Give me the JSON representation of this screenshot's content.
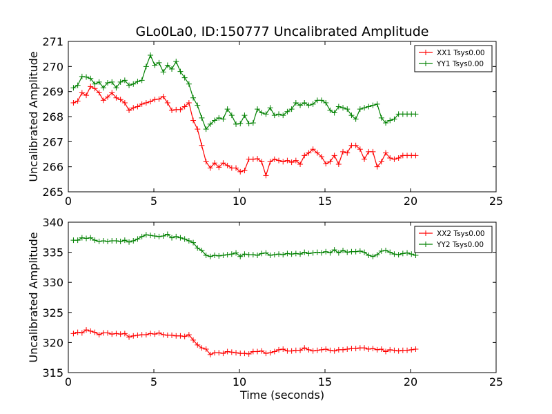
{
  "chart_data": [
    {
      "type": "line",
      "title": "GLo0La0, ID:150777 Uncalibrated Amplitude",
      "xlabel": "",
      "ylabel": "Uncalibrated Amplitude",
      "xlim": [
        0,
        25
      ],
      "ylim": [
        265,
        271
      ],
      "xticks": [
        "0",
        "5",
        "10",
        "15",
        "20",
        "25"
      ],
      "yticks": [
        "265",
        "266",
        "267",
        "268",
        "269",
        "270",
        "271"
      ],
      "legend": "top-right",
      "grid": false,
      "x": [
        0.3,
        0.55,
        0.8,
        1.05,
        1.3,
        1.55,
        1.8,
        2.05,
        2.3,
        2.55,
        2.8,
        3.05,
        3.3,
        3.55,
        3.8,
        4.05,
        4.3,
        4.55,
        4.8,
        5.05,
        5.3,
        5.55,
        5.8,
        6.05,
        6.3,
        6.55,
        6.8,
        7.05,
        7.3,
        7.55,
        7.8,
        8.05,
        8.3,
        8.55,
        8.8,
        9.05,
        9.3,
        9.55,
        9.8,
        10.05,
        10.3,
        10.55,
        10.8,
        11.05,
        11.3,
        11.55,
        11.8,
        12.05,
        12.3,
        12.55,
        12.8,
        13.05,
        13.3,
        13.55,
        13.8,
        14.05,
        14.3,
        14.55,
        14.8,
        15.05,
        15.3,
        15.55,
        15.8,
        16.05,
        16.3,
        16.55,
        16.8,
        17.05,
        17.3,
        17.55,
        17.8,
        18.05,
        18.3,
        18.55,
        18.8,
        19.05,
        19.3,
        19.55,
        19.8,
        20.05,
        20.3
      ],
      "series": [
        {
          "name": "XX1 Tsys0.00",
          "color": "#ff0000",
          "values": [
            268.55,
            268.62,
            268.95,
            268.85,
            269.2,
            269.12,
            268.95,
            268.65,
            268.78,
            268.95,
            268.75,
            268.68,
            268.55,
            268.25,
            268.35,
            268.4,
            268.5,
            268.55,
            268.6,
            268.68,
            268.7,
            268.8,
            268.55,
            268.25,
            268.28,
            268.28,
            268.4,
            268.55,
            267.85,
            267.5,
            266.85,
            266.2,
            265.95,
            266.15,
            265.98,
            266.15,
            266.05,
            265.95,
            265.95,
            265.8,
            265.85,
            266.3,
            266.3,
            266.32,
            266.2,
            265.65,
            266.2,
            266.3,
            266.25,
            266.2,
            266.25,
            266.18,
            266.25,
            266.1,
            266.45,
            266.55,
            266.7,
            266.55,
            266.4,
            266.12,
            266.2,
            266.45,
            266.1,
            266.6,
            266.55,
            266.85,
            266.85,
            266.7,
            266.3,
            266.6,
            266.6,
            266.0,
            266.2,
            266.55,
            266.35,
            266.3,
            266.35,
            266.45,
            266.45,
            266.45,
            266.45
          ]
        },
        {
          "name": "YY1 Tsys0.00",
          "color": "#008000",
          "values": [
            269.15,
            269.25,
            269.6,
            269.58,
            269.52,
            269.3,
            269.38,
            269.15,
            269.35,
            269.38,
            269.15,
            269.38,
            269.45,
            269.25,
            269.3,
            269.4,
            269.45,
            270.0,
            270.45,
            270.05,
            270.15,
            269.78,
            270.05,
            269.9,
            270.2,
            269.8,
            269.55,
            269.3,
            268.75,
            268.45,
            267.95,
            267.5,
            267.7,
            267.85,
            267.95,
            267.9,
            268.3,
            268.05,
            267.7,
            267.72,
            268.05,
            267.72,
            267.75,
            268.3,
            268.15,
            268.1,
            268.35,
            268.05,
            268.1,
            268.05,
            268.2,
            268.3,
            268.55,
            268.45,
            268.55,
            268.45,
            268.5,
            268.65,
            268.65,
            268.55,
            268.25,
            268.15,
            268.4,
            268.35,
            268.3,
            268.05,
            267.9,
            268.3,
            268.35,
            268.4,
            268.45,
            268.5,
            267.95,
            267.75,
            267.85,
            267.9,
            268.1,
            268.1,
            268.1,
            268.1,
            268.1
          ]
        }
      ]
    },
    {
      "type": "line",
      "title": "",
      "xlabel": "Time (seconds)",
      "ylabel": "Uncalibrated Amplitude",
      "xlim": [
        0,
        25
      ],
      "ylim": [
        315,
        340
      ],
      "xticks": [
        "0",
        "5",
        "10",
        "15",
        "20",
        "25"
      ],
      "yticks": [
        "315",
        "320",
        "325",
        "330",
        "335",
        "340"
      ],
      "legend": "top-right",
      "grid": false,
      "x": [
        0.3,
        0.55,
        0.8,
        1.05,
        1.3,
        1.55,
        1.8,
        2.05,
        2.3,
        2.55,
        2.8,
        3.05,
        3.3,
        3.55,
        3.8,
        4.05,
        4.3,
        4.55,
        4.8,
        5.05,
        5.3,
        5.55,
        5.8,
        6.05,
        6.3,
        6.55,
        6.8,
        7.05,
        7.3,
        7.55,
        7.8,
        8.05,
        8.3,
        8.55,
        8.8,
        9.05,
        9.3,
        9.55,
        9.8,
        10.05,
        10.3,
        10.55,
        10.8,
        11.05,
        11.3,
        11.55,
        11.8,
        12.05,
        12.3,
        12.55,
        12.8,
        13.05,
        13.3,
        13.55,
        13.8,
        14.05,
        14.3,
        14.55,
        14.8,
        15.05,
        15.3,
        15.55,
        15.8,
        16.05,
        16.3,
        16.55,
        16.8,
        17.05,
        17.3,
        17.55,
        17.8,
        18.05,
        18.3,
        18.55,
        18.8,
        19.05,
        19.3,
        19.55,
        19.8,
        20.05,
        20.3
      ],
      "series": [
        {
          "name": "XX2 Tsys0.00",
          "color": "#ff0000",
          "values": [
            321.5,
            321.7,
            321.6,
            322.1,
            321.9,
            321.7,
            321.3,
            321.6,
            321.6,
            321.4,
            321.5,
            321.4,
            321.5,
            320.9,
            321.1,
            321.2,
            321.3,
            321.3,
            321.5,
            321.4,
            321.6,
            321.3,
            321.2,
            321.2,
            321.1,
            321.1,
            321.0,
            321.3,
            320.4,
            319.6,
            319.1,
            318.9,
            318.0,
            318.3,
            318.3,
            318.2,
            318.5,
            318.4,
            318.3,
            318.2,
            318.2,
            318.1,
            318.5,
            318.5,
            318.6,
            318.2,
            318.3,
            318.5,
            318.8,
            318.9,
            318.6,
            318.6,
            318.7,
            318.7,
            319.1,
            318.8,
            318.6,
            318.7,
            318.8,
            318.9,
            318.7,
            318.6,
            318.8,
            318.8,
            318.9,
            319.0,
            319.0,
            319.1,
            319.1,
            318.9,
            319.0,
            318.8,
            318.9,
            318.5,
            318.8,
            318.7,
            318.6,
            318.7,
            318.7,
            318.8,
            318.9
          ]
        },
        {
          "name": "YY2 Tsys0.00",
          "color": "#008000",
          "values": [
            337.0,
            337.0,
            337.4,
            337.3,
            337.4,
            337.0,
            336.8,
            336.9,
            336.8,
            336.9,
            336.9,
            336.8,
            337.0,
            336.7,
            336.9,
            337.2,
            337.6,
            337.9,
            337.8,
            337.7,
            337.6,
            337.7,
            338.0,
            337.4,
            337.6,
            337.4,
            337.2,
            336.9,
            336.6,
            335.7,
            335.3,
            334.5,
            334.3,
            334.5,
            334.4,
            334.5,
            334.6,
            334.7,
            334.9,
            334.3,
            334.7,
            334.6,
            334.6,
            334.5,
            334.8,
            334.9,
            334.5,
            334.6,
            334.7,
            334.6,
            334.8,
            334.7,
            334.8,
            334.7,
            335.0,
            334.8,
            334.9,
            335.0,
            334.9,
            335.1,
            334.9,
            335.4,
            334.9,
            335.3,
            335.0,
            335.1,
            335.1,
            335.2,
            335.0,
            334.5,
            334.3,
            334.6,
            335.2,
            335.3,
            335.0,
            334.7,
            334.6,
            334.8,
            334.9,
            334.7,
            334.5
          ]
        }
      ]
    }
  ]
}
